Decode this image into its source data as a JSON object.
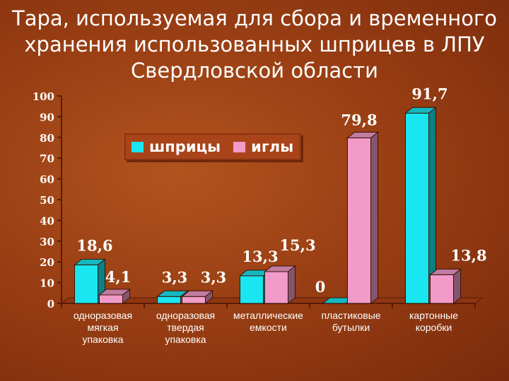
{
  "title_lines": [
    "Тара, используемая для сбора и временного",
    "хранения использованных шприцев в ЛПУ",
    "Свердловской области"
  ],
  "colors": {
    "series_1": "#19e6f0",
    "series_2": "#f29bc8",
    "axis": "#5a1c06",
    "text": "#ffffff"
  },
  "chart_data": {
    "type": "bar",
    "categories": [
      [
        "одноразовая",
        "мягкая",
        "упаковка"
      ],
      [
        "одноразовая",
        "твердая",
        "упаковка"
      ],
      [
        "металлические",
        "емкости"
      ],
      [
        "пластиковые",
        "бутылки"
      ],
      [
        "картонные",
        "коробки"
      ]
    ],
    "series": [
      {
        "name": "шприцы",
        "values": [
          18.6,
          3.3,
          13.3,
          0,
          91.7
        ],
        "labels": [
          "18,6",
          "3,3",
          "13,3",
          "0",
          "91,7"
        ]
      },
      {
        "name": "иглы",
        "values": [
          4.1,
          3.3,
          15.3,
          79.8,
          13.8
        ],
        "labels": [
          "4,1",
          "3,3",
          "15,3",
          "79,8",
          "13,8"
        ]
      }
    ],
    "ylim": [
      0,
      100
    ],
    "yticks": [
      0,
      10,
      20,
      30,
      40,
      50,
      60,
      70,
      80,
      90,
      100
    ],
    "grid": false,
    "legend_position": "top-left",
    "style": "3d"
  }
}
